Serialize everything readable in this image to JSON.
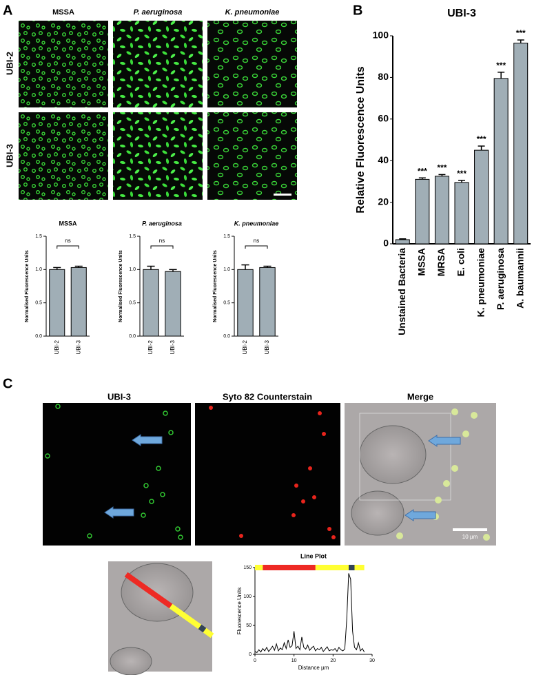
{
  "panels": {
    "a_label": "A",
    "b_label": "B",
    "c_label": "C",
    "a_columns": [
      "MSSA",
      "P. aeruginosa",
      "K. pneumoniae"
    ],
    "a_rows": [
      "UBI-2",
      "UBI-3"
    ],
    "c_columns": [
      "UBI-3",
      "Syto 82 Counterstain",
      "Merge"
    ],
    "scale_bar": "10 µm"
  },
  "chart_data": [
    {
      "type": "bar",
      "title": "MSSA",
      "title_italic": false,
      "categories": [
        "UBI-2",
        "UBI-3"
      ],
      "values": [
        1.0,
        1.03
      ],
      "errors": [
        0.03,
        0.02
      ],
      "color": "#a0aeb6",
      "ylabel": "Normalised Fluorescence Units",
      "ylim": [
        0,
        1.5
      ],
      "yticks": [
        {
          "value": 0,
          "label": "0.0"
        },
        {
          "value": 0.5,
          "label": "0.5"
        },
        {
          "value": 1,
          "label": "1.0"
        },
        {
          "value": 1.5,
          "label": "1.5"
        }
      ],
      "annotation": "ns"
    },
    {
      "type": "bar",
      "title": "P. aeruginosa",
      "title_italic": true,
      "categories": [
        "UBI-2",
        "UBI-3"
      ],
      "values": [
        1.0,
        0.97
      ],
      "errors": [
        0.05,
        0.03
      ],
      "color": "#a0aeb6",
      "ylabel": "Normalised Fluorescence Units",
      "ylim": [
        0,
        1.5
      ],
      "yticks": [
        {
          "value": 0,
          "label": "0.0"
        },
        {
          "value": 0.5,
          "label": "0.5"
        },
        {
          "value": 1,
          "label": "1.0"
        },
        {
          "value": 1.5,
          "label": "1.5"
        }
      ],
      "annotation": "ns"
    },
    {
      "type": "bar",
      "title": "K. pneumoniae",
      "title_italic": true,
      "categories": [
        "UBI-2",
        "UBI-3"
      ],
      "values": [
        1.0,
        1.03
      ],
      "errors": [
        0.07,
        0.02
      ],
      "color": "#a0aeb6",
      "ylabel": "Normalised Fluorescence Units",
      "ylim": [
        0,
        1.5
      ],
      "yticks": [
        {
          "value": 0,
          "label": "0.0"
        },
        {
          "value": 0.5,
          "label": "0.5"
        },
        {
          "value": 1,
          "label": "1.0"
        },
        {
          "value": 1.5,
          "label": "1.5"
        }
      ],
      "annotation": "ns"
    },
    {
      "type": "bar",
      "title": "UBI-3",
      "title_italic": false,
      "categories": [
        "Unstained Bacteria",
        "MSSA",
        "MRSA",
        "E. coli",
        "K. pneumoniae",
        "P. aeruginosa",
        "A. baumannii"
      ],
      "values": [
        2,
        31,
        32.5,
        29.5,
        45,
        79.5,
        96.5
      ],
      "errors": [
        0.4,
        0.7,
        0.8,
        1,
        2,
        3,
        1.5
      ],
      "significance": [
        null,
        "***",
        "***",
        "***",
        "***",
        "***",
        "***"
      ],
      "color": "#a0aeb6",
      "ylabel": "Relative Fluorescence Units",
      "ylim": [
        0,
        100
      ],
      "yticks": [
        0,
        20,
        40,
        60,
        80,
        100
      ]
    },
    {
      "type": "line",
      "title": "Line Plot",
      "xlabel": "Distance µm",
      "ylabel": "Fluorescence Units",
      "color": "#000000",
      "x": [
        0,
        0.5,
        1,
        1.5,
        2,
        2.5,
        3,
        3.5,
        4,
        4.5,
        5,
        5.5,
        6,
        6.5,
        7,
        7.5,
        8,
        8.5,
        9,
        9.5,
        10,
        10.5,
        11,
        11.5,
        12,
        12.5,
        13,
        13.5,
        14,
        14.5,
        15,
        15.5,
        16,
        16.5,
        17,
        17.5,
        18,
        18.5,
        19,
        19.5,
        20,
        20.5,
        21,
        21.5,
        22,
        22.5,
        23,
        23.5,
        24,
        24.5,
        25,
        25.5,
        26,
        26.5,
        27,
        27.5,
        28
      ],
      "values": [
        5,
        3,
        8,
        4,
        10,
        6,
        12,
        5,
        9,
        14,
        7,
        18,
        6,
        11,
        8,
        20,
        10,
        25,
        12,
        15,
        40,
        10,
        14,
        8,
        30,
        12,
        9,
        16,
        7,
        11,
        14,
        6,
        10,
        8,
        12,
        5,
        9,
        13,
        6,
        8,
        7,
        10,
        5,
        12,
        8,
        6,
        9,
        60,
        140,
        130,
        40,
        12,
        8,
        20,
        6,
        10,
        4
      ],
      "color_bar": [
        {
          "start": 0,
          "end": 2,
          "color": "#ffff33"
        },
        {
          "start": 2,
          "end": 15.5,
          "color": "#ee2a24"
        },
        {
          "start": 15.5,
          "end": 24,
          "color": "#ffff33"
        },
        {
          "start": 24,
          "end": 25.5,
          "color": "#334455"
        },
        {
          "start": 25.5,
          "end": 28,
          "color": "#ffff33"
        }
      ],
      "xlim": [
        0,
        30
      ],
      "xticks": [
        0,
        10,
        20,
        30
      ],
      "ylim": [
        0,
        150
      ],
      "yticks": [
        0,
        50,
        100,
        150
      ]
    }
  ]
}
